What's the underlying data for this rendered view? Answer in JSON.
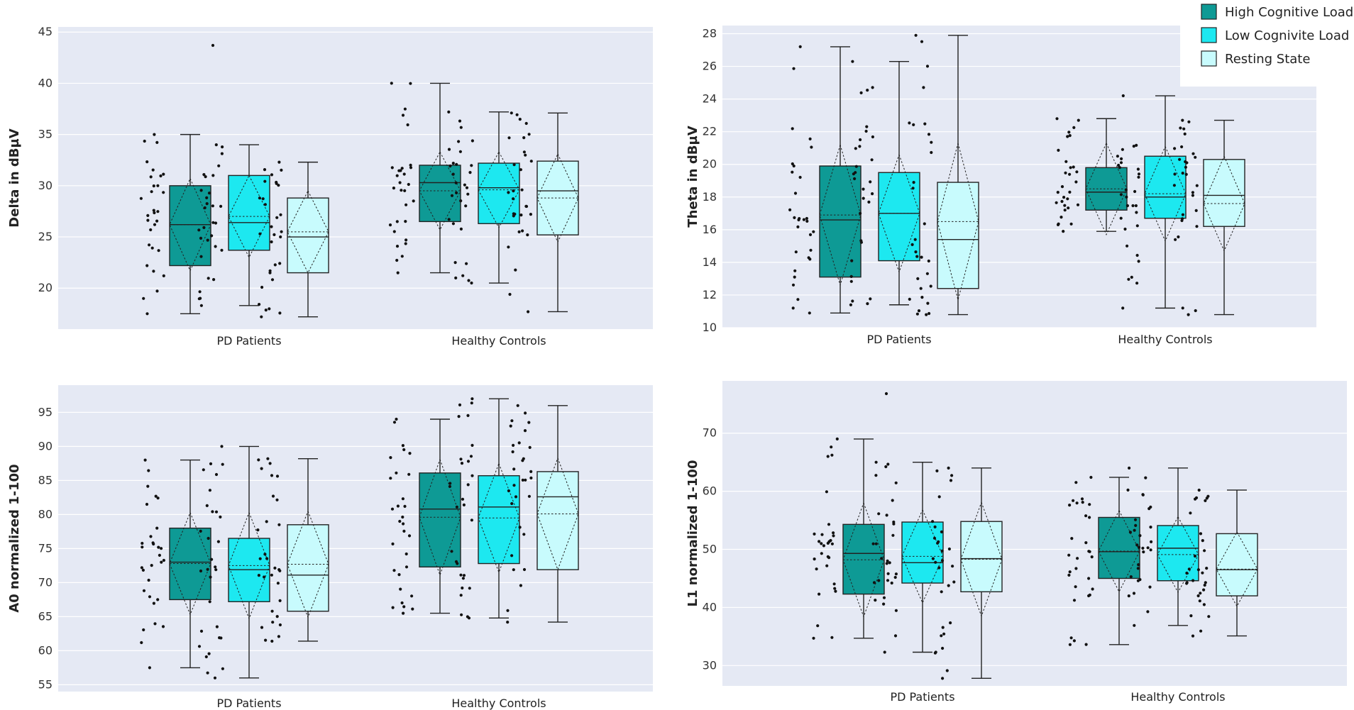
{
  "colors": {
    "High Cognitive Load": "#0e9a95",
    "Low Cognivite Load": "#1de8f0",
    "Resting State": "#c8fbfd"
  },
  "legend": {
    "items": [
      "High Cognitive Load",
      "Low Cognivite Load",
      "Resting State"
    ]
  },
  "chart_data": [
    {
      "id": "delta",
      "type": "box",
      "ylabel": "Delta in dBµV",
      "ylim": [
        16,
        45.5
      ],
      "yticks": [
        20,
        25,
        30,
        35,
        40,
        45
      ],
      "categories": [
        "PD Patients",
        "Healthy Controls"
      ],
      "series": [
        {
          "name": "High Cognitive Load",
          "groups": [
            {
              "min": 17.5,
              "q1": 22.2,
              "median": 26.2,
              "q3": 30.0,
              "max": 35.0,
              "mean": 26.2,
              "sd": 4.5
            },
            {
              "min": 21.5,
              "q1": 26.5,
              "median": 30.3,
              "q3": 32.0,
              "max": 40.0,
              "mean": 29.5,
              "sd": 3.8
            }
          ]
        },
        {
          "name": "Low Cognivite Load",
          "groups": [
            {
              "min": 18.3,
              "q1": 23.7,
              "median": 26.4,
              "q3": 31.0,
              "max": 34.0,
              "mean": 27.0,
              "sd": 4.0
            },
            {
              "min": 20.5,
              "q1": 26.3,
              "median": 29.8,
              "q3": 32.2,
              "max": 37.2,
              "mean": 29.6,
              "sd": 3.7
            }
          ]
        },
        {
          "name": "Resting State",
          "groups": [
            {
              "min": 17.2,
              "q1": 21.5,
              "median": 25.0,
              "q3": 28.8,
              "max": 32.3,
              "mean": 25.5,
              "sd": 4.0
            },
            {
              "min": 17.7,
              "q1": 25.2,
              "median": 29.5,
              "q3": 32.4,
              "max": 37.1,
              "mean": 28.8,
              "sd": 4.3
            }
          ]
        }
      ],
      "outliers": [
        {
          "series": 1,
          "group": 0,
          "value": 43.7
        }
      ]
    },
    {
      "id": "theta",
      "type": "box",
      "ylabel": "Theta in dBµV",
      "ylim": [
        10,
        28.5
      ],
      "yticks": [
        10,
        12,
        14,
        16,
        18,
        20,
        22,
        24,
        26,
        28
      ],
      "categories": [
        "PD Patients",
        "Healthy Controls"
      ],
      "series": [
        {
          "name": "High Cognitive Load",
          "groups": [
            {
              "min": 10.9,
              "q1": 13.1,
              "median": 16.6,
              "q3": 19.9,
              "max": 27.2,
              "mean": 16.9,
              "sd": 4.3
            },
            {
              "min": 15.9,
              "q1": 17.2,
              "median": 18.3,
              "q3": 19.8,
              "max": 22.8,
              "mean": 18.5,
              "sd": 2.8
            }
          ]
        },
        {
          "name": "Low Cognivite Load",
          "groups": [
            {
              "min": 11.4,
              "q1": 14.1,
              "median": 17.0,
              "q3": 19.5,
              "max": 26.3,
              "mean": 17.0,
              "sd": 3.6
            },
            {
              "min": 11.2,
              "q1": 16.7,
              "median": 18.0,
              "q3": 20.5,
              "max": 24.2,
              "mean": 18.2,
              "sd": 2.9
            }
          ]
        },
        {
          "name": "Resting State",
          "groups": [
            {
              "min": 10.8,
              "q1": 12.4,
              "median": 15.4,
              "q3": 18.9,
              "max": 27.9,
              "mean": 16.5,
              "sd": 4.8
            },
            {
              "min": 10.8,
              "q1": 16.2,
              "median": 18.1,
              "q3": 20.3,
              "max": 22.7,
              "mean": 17.6,
              "sd": 2.9
            }
          ]
        }
      ],
      "outliers": []
    },
    {
      "id": "a0",
      "type": "box",
      "ylabel": "A0 normalized 1-100",
      "ylim": [
        54,
        99
      ],
      "yticks": [
        55,
        60,
        65,
        70,
        75,
        80,
        85,
        90,
        95
      ],
      "categories": [
        "PD Patients",
        "Healthy Controls"
      ],
      "series": [
        {
          "name": "High Cognitive Load",
          "groups": [
            {
              "min": 57.5,
              "q1": 67.5,
              "median": 73.0,
              "q3": 78.0,
              "max": 88.0,
              "mean": 72.8,
              "sd": 7.5
            },
            {
              "min": 65.5,
              "q1": 72.3,
              "median": 80.8,
              "q3": 86.1,
              "max": 94.0,
              "mean": 79.6,
              "sd": 8.5
            }
          ]
        },
        {
          "name": "Low Cognivite Load",
          "groups": [
            {
              "min": 56.0,
              "q1": 67.2,
              "median": 71.9,
              "q3": 76.5,
              "max": 90.0,
              "mean": 72.5,
              "sd": 7.8
            },
            {
              "min": 64.8,
              "q1": 72.8,
              "median": 81.1,
              "q3": 85.7,
              "max": 97.0,
              "mean": 79.5,
              "sd": 8.0
            }
          ]
        },
        {
          "name": "Resting State",
          "groups": [
            {
              "min": 61.4,
              "q1": 65.8,
              "median": 71.1,
              "q3": 78.5,
              "max": 88.2,
              "mean": 72.7,
              "sd": 7.8
            },
            {
              "min": 64.2,
              "q1": 71.9,
              "median": 82.6,
              "q3": 86.3,
              "max": 96.0,
              "mean": 80.1,
              "sd": 8.2
            }
          ]
        }
      ],
      "outliers": []
    },
    {
      "id": "l1",
      "type": "box",
      "ylabel": "L1 normalized 1-100",
      "ylim": [
        26.5,
        79
      ],
      "yticks": [
        30,
        40,
        50,
        60,
        70
      ],
      "categories": [
        "PD Patients",
        "Healthy Controls"
      ],
      "series": [
        {
          "name": "High Cognitive Load",
          "groups": [
            {
              "min": 34.7,
              "q1": 42.3,
              "median": 49.3,
              "q3": 54.3,
              "max": 69.0,
              "mean": 48.2,
              "sd": 9.8
            },
            {
              "min": 33.6,
              "q1": 45.0,
              "median": 49.6,
              "q3": 55.5,
              "max": 62.4,
              "mean": 49.7,
              "sd": 7.0
            }
          ]
        },
        {
          "name": "Low Cognivite Load",
          "groups": [
            {
              "min": 32.3,
              "q1": 44.2,
              "median": 47.7,
              "q3": 54.7,
              "max": 65.0,
              "mean": 48.8,
              "sd": 8.0
            },
            {
              "min": 36.9,
              "q1": 44.6,
              "median": 50.2,
              "q3": 54.1,
              "max": 64.0,
              "mean": 49.1,
              "sd": 6.5
            }
          ]
        },
        {
          "name": "Resting State",
          "groups": [
            {
              "min": 27.8,
              "q1": 42.7,
              "median": 48.4,
              "q3": 54.8,
              "max": 64.0,
              "mean": 48.3,
              "sd": 9.8
            },
            {
              "min": 35.1,
              "q1": 42.0,
              "median": 46.5,
              "q3": 52.7,
              "max": 60.2,
              "mean": 46.6,
              "sd": 6.4
            }
          ]
        }
      ],
      "outliers": [
        {
          "series": 1,
          "group": 0,
          "value": 76.8
        }
      ]
    }
  ]
}
